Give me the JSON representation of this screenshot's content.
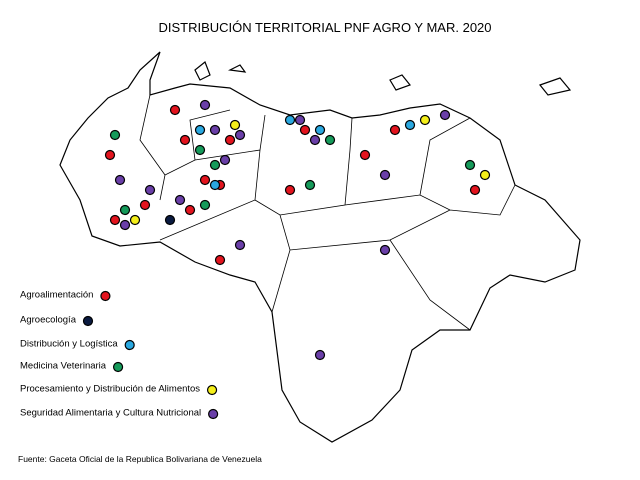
{
  "header": {
    "title": "DISTRIBUCIÓN  TERRITORIAL  PNF AGRO Y MAR. 2020"
  },
  "legend": {
    "items": [
      "Agroalimentación",
      "Agroecología",
      "Distribución y Logística",
      "Medicina Veterinaria",
      "Procesamiento y Distribución de Alimentos",
      "Seguridad Alimentaria y Cultura Nutricional"
    ]
  },
  "source": "Fuente: Gaceta Oficial de la Republica Bolivariana  de Venezuela"
}
